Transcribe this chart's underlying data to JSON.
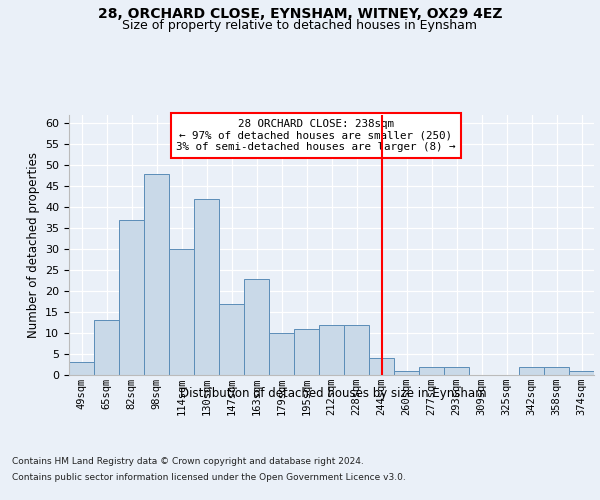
{
  "title1": "28, ORCHARD CLOSE, EYNSHAM, WITNEY, OX29 4EZ",
  "title2": "Size of property relative to detached houses in Eynsham",
  "xlabel": "Distribution of detached houses by size in Eynsham",
  "ylabel": "Number of detached properties",
  "footnote1": "Contains HM Land Registry data © Crown copyright and database right 2024.",
  "footnote2": "Contains public sector information licensed under the Open Government Licence v3.0.",
  "categories": [
    "49sqm",
    "65sqm",
    "82sqm",
    "98sqm",
    "114sqm",
    "130sqm",
    "147sqm",
    "163sqm",
    "179sqm",
    "195sqm",
    "212sqm",
    "228sqm",
    "244sqm",
    "260sqm",
    "277sqm",
    "293sqm",
    "309sqm",
    "325sqm",
    "342sqm",
    "358sqm",
    "374sqm"
  ],
  "values": [
    3,
    13,
    37,
    48,
    30,
    42,
    17,
    23,
    10,
    11,
    12,
    12,
    4,
    1,
    2,
    2,
    0,
    0,
    2,
    2,
    1
  ],
  "bar_color": "#c9d9e8",
  "bar_edge_color": "#5b8db8",
  "vline_x": 12.0,
  "vline_color": "red",
  "annotation_box_title": "28 ORCHARD CLOSE: 238sqm",
  "annotation_line1": "← 97% of detached houses are smaller (250)",
  "annotation_line2": "3% of semi-detached houses are larger (8) →",
  "ylim": [
    0,
    62
  ],
  "yticks": [
    0,
    5,
    10,
    15,
    20,
    25,
    30,
    35,
    40,
    45,
    50,
    55,
    60
  ],
  "bg_color": "#eaf0f8",
  "plot_bg_color": "#eaf0f8",
  "grid_color": "#ffffff"
}
